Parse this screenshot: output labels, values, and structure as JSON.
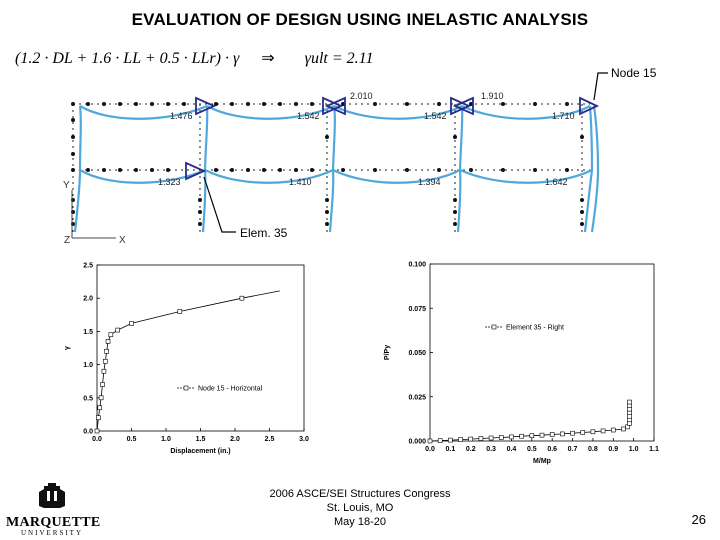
{
  "title": "EVALUATION OF DESIGN USING INELASTIC ANALYSIS",
  "equation": {
    "left": "(1.2 · DL + 1.6 · LL + 0.5 · LLr) · γ",
    "arrow": "⇒",
    "right": "γult = 2.11"
  },
  "frame": {
    "node_label": "Node 15",
    "elem_label": "Elem. 35",
    "axis_y": "Y",
    "axis_z": "Z",
    "axis_x": "X",
    "hinge_values": [
      "2.010",
      "1.910",
      "1.476",
      "1.542",
      "1.542",
      "1.710",
      "1.323",
      "1.410",
      "1.394",
      "1.642"
    ]
  },
  "chart_data": [
    {
      "type": "line",
      "title": "",
      "xlabel": "Displacement (in.)",
      "ylabel": "γ",
      "xlim": [
        0.0,
        3.0
      ],
      "ylim": [
        0.0,
        2.5
      ],
      "xticks": [
        "0.0",
        "0.5",
        "1.0",
        "1.5",
        "2.0",
        "2.5",
        "3.0"
      ],
      "yticks": [
        "0.0",
        "0.5",
        "1.0",
        "1.5",
        "2.0",
        "2.5"
      ],
      "legend": "Node 15 - Horizontal",
      "series": [
        {
          "name": "Node 15 - Horizontal",
          "x": [
            0.0,
            0.02,
            0.04,
            0.06,
            0.08,
            0.1,
            0.12,
            0.14,
            0.16,
            0.2,
            0.3,
            0.5,
            1.2,
            2.1,
            2.65
          ],
          "y": [
            0.0,
            0.2,
            0.35,
            0.5,
            0.7,
            0.9,
            1.05,
            1.2,
            1.35,
            1.45,
            1.52,
            1.62,
            1.8,
            2.0,
            2.11
          ],
          "markers_x": [
            0.0,
            0.02,
            0.04,
            0.06,
            0.08,
            0.1,
            0.12,
            0.14,
            0.16,
            0.2,
            0.3,
            0.5,
            1.2,
            2.1
          ]
        }
      ]
    },
    {
      "type": "line",
      "title": "",
      "xlabel": "M/Mp",
      "ylabel": "P/Py",
      "xlim": [
        0.0,
        1.1
      ],
      "ylim": [
        0.0,
        0.1
      ],
      "xticks": [
        "0.0",
        "0.1",
        "0.2",
        "0.3",
        "0.4",
        "0.5",
        "0.6",
        "0.7",
        "0.8",
        "0.9",
        "1.0",
        "1.1"
      ],
      "yticks": [
        "0.000",
        "0.025",
        "0.050",
        "0.075",
        "0.100"
      ],
      "legend": "Element 35 - Right",
      "series": [
        {
          "name": "Element 35 - Right",
          "x": [
            0.0,
            0.05,
            0.1,
            0.15,
            0.2,
            0.25,
            0.3,
            0.35,
            0.4,
            0.45,
            0.5,
            0.55,
            0.6,
            0.65,
            0.7,
            0.75,
            0.8,
            0.85,
            0.9,
            0.95,
            0.97,
            0.98,
            0.98,
            0.98,
            0.98,
            0.98,
            0.98,
            0.98
          ],
          "y": [
            0.0,
            0.0002,
            0.0005,
            0.0008,
            0.0011,
            0.0014,
            0.0017,
            0.002,
            0.0023,
            0.0027,
            0.003,
            0.0033,
            0.0037,
            0.004,
            0.0044,
            0.0048,
            0.0052,
            0.0057,
            0.0062,
            0.0068,
            0.008,
            0.01,
            0.012,
            0.014,
            0.016,
            0.018,
            0.02,
            0.022
          ]
        }
      ]
    }
  ],
  "footer": {
    "line1": "2006 ASCE/SEI Structures Congress",
    "line2": "St. Louis, MO",
    "line3": "May 18-20"
  },
  "page_number": "26",
  "logo": {
    "word": "MARQUETTE",
    "sub": "UNIVERSITY"
  },
  "colors": {
    "frame": "#4fa8dc",
    "hinge": "#2a2a8a",
    "node": "#111111"
  }
}
